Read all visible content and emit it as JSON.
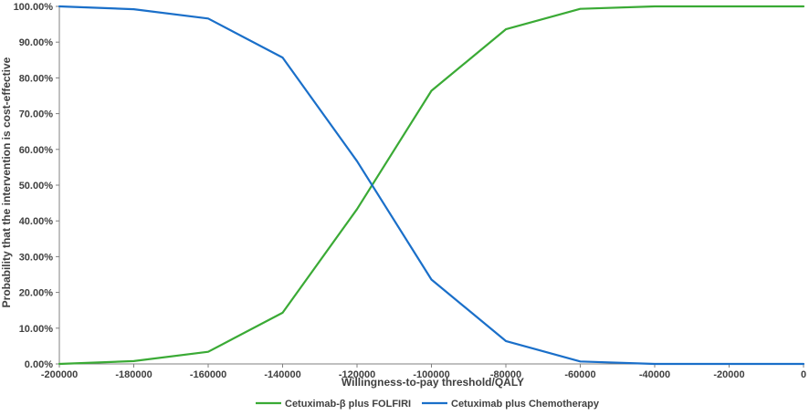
{
  "chart_data": {
    "type": "line",
    "title": "",
    "xlabel": "Willingness-to-pay threshold/QALY",
    "ylabel": "Probability that the intervention is cost-effective",
    "xlim": [
      -200000,
      0
    ],
    "ylim": [
      0,
      100
    ],
    "x_ticks": [
      -200000,
      -180000,
      -160000,
      -140000,
      -120000,
      -100000,
      -80000,
      -60000,
      -40000,
      -20000,
      0
    ],
    "x_tick_labels": [
      "-200000",
      "-180000",
      "-160000",
      "-140000",
      "-120000",
      "-100000",
      "-80000",
      "-60000",
      "-40000",
      "-20000",
      "0"
    ],
    "y_ticks": [
      0,
      10,
      20,
      30,
      40,
      50,
      60,
      70,
      80,
      90,
      100
    ],
    "y_tick_labels": [
      "0.00%",
      "10.00%",
      "20.00%",
      "30.00%",
      "40.00%",
      "50.00%",
      "60.00%",
      "70.00%",
      "80.00%",
      "90.00%",
      "100.00%"
    ],
    "grid": false,
    "legend_position": "bottom-center",
    "series": [
      {
        "name": "Cetuximab-β plus FOLFIRI",
        "color": "#3aaa35",
        "x": [
          -200000,
          -180000,
          -160000,
          -140000,
          -120000,
          -100000,
          -80000,
          -60000,
          -40000,
          -20000,
          0
        ],
        "y": [
          0,
          0.8,
          3.4,
          14.3,
          43.3,
          76.4,
          93.6,
          99.3,
          100,
          100,
          100
        ]
      },
      {
        "name": "Cetuximab plus Chemotherapy",
        "color": "#1a6fc9",
        "x": [
          -200000,
          -180000,
          -160000,
          -140000,
          -120000,
          -100000,
          -80000,
          -60000,
          -40000,
          -20000,
          0
        ],
        "y": [
          100,
          99.2,
          96.6,
          85.7,
          56.7,
          23.6,
          6.4,
          0.7,
          0,
          0,
          0
        ]
      }
    ]
  }
}
